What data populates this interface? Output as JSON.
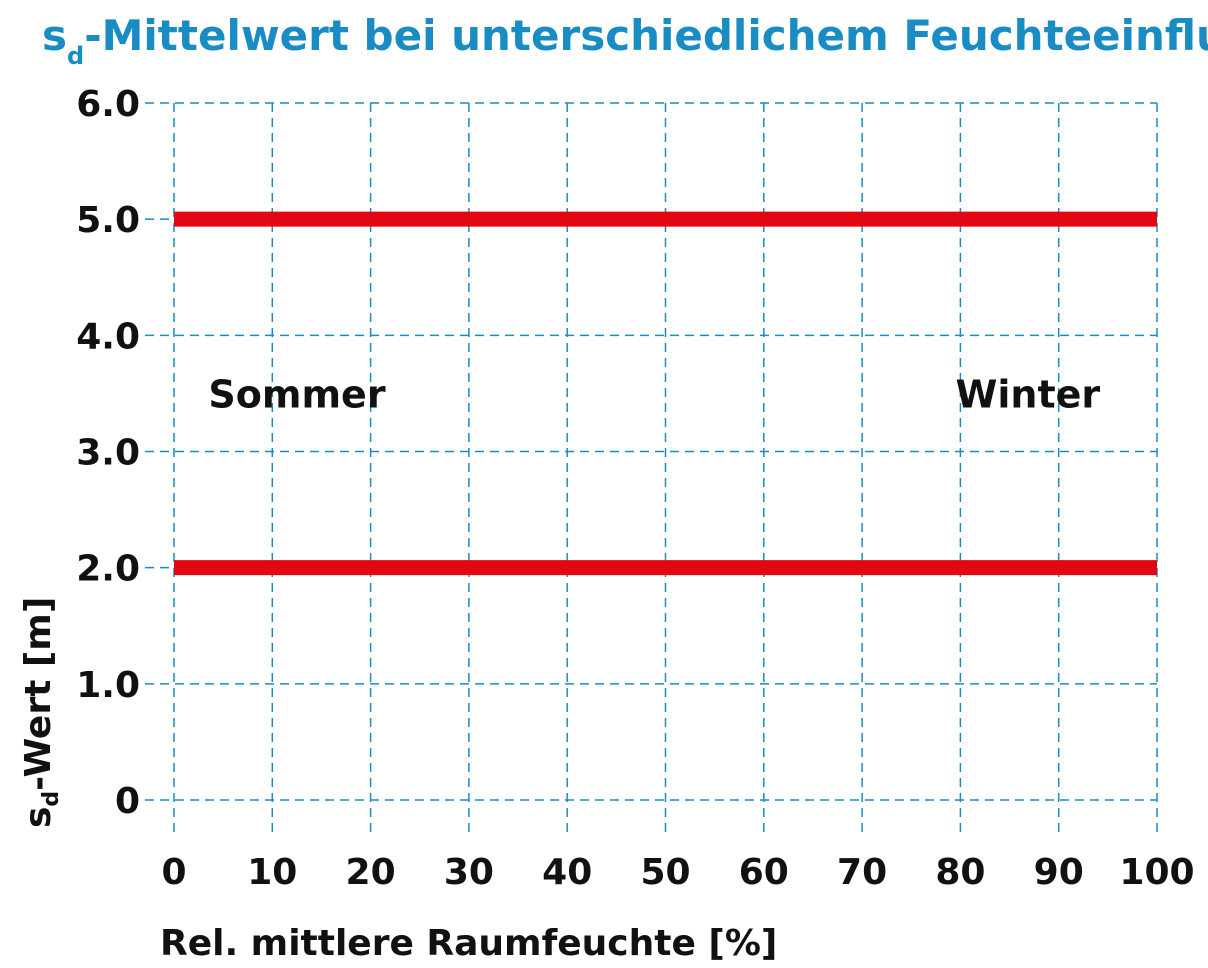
{
  "chart_data": {
    "type": "line",
    "title": {
      "main": "s",
      "sub": "d",
      "rest": "-Mittelwert bei unterschiedlichem Feuchteeinfluss"
    },
    "xlabel": "Rel. mittlere Raumfeuchte [%]",
    "ylabel": {
      "main": "s",
      "sub": "d",
      "rest": "-Wert [m]"
    },
    "xlim": [
      0,
      100
    ],
    "ylim": [
      0,
      6
    ],
    "x_ticks": [
      0,
      10,
      20,
      30,
      40,
      50,
      60,
      70,
      80,
      90,
      100
    ],
    "x_tick_labels": [
      "0",
      "10",
      "20",
      "30",
      "40",
      "50",
      "60",
      "70",
      "80",
      "90",
      "100"
    ],
    "y_ticks": [
      0,
      1,
      2,
      3,
      4,
      5,
      6
    ],
    "y_tick_labels": [
      "0",
      "1.0",
      "2.0",
      "3.0",
      "4.0",
      "5.0",
      "6.0"
    ],
    "grid": true,
    "series": [
      {
        "x": [
          0,
          100
        ],
        "y": [
          5,
          5
        ],
        "color": "#e30613"
      },
      {
        "x": [
          0,
          100
        ],
        "y": [
          2,
          2
        ],
        "color": "#e30613"
      }
    ],
    "annotations": [
      {
        "text": "Sommer",
        "x": 3.5,
        "y": 3.5
      },
      {
        "text": "Winter",
        "x": 79.5,
        "y": 3.5
      }
    ],
    "colors": {
      "grid": "#1a8cc4",
      "title": "#1a8cc4",
      "text": "#111111",
      "series": "#e30613"
    }
  }
}
